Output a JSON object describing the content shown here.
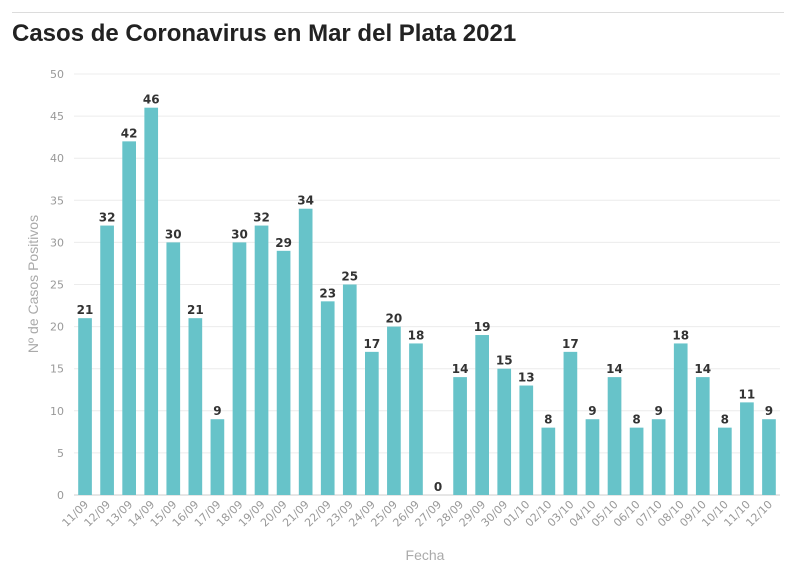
{
  "chart_data": {
    "type": "bar",
    "title": "Casos de Coronavirus en Mar del Plata 2021",
    "xlabel": "Fecha",
    "ylabel": "Nº de Casos Positivos",
    "ylim": [
      0,
      50
    ],
    "yticks": [
      0,
      5,
      10,
      15,
      20,
      25,
      30,
      35,
      40,
      45,
      50
    ],
    "grid": true,
    "bar_color": "#67c3c9",
    "categories": [
      "11/09",
      "12/09",
      "13/09",
      "14/09",
      "15/09",
      "16/09",
      "17/09",
      "18/09",
      "19/09",
      "20/09",
      "21/09",
      "22/09",
      "23/09",
      "24/09",
      "25/09",
      "26/09",
      "27/09",
      "28/09",
      "29/09",
      "30/09",
      "01/10",
      "02/10",
      "03/10",
      "04/10",
      "05/10",
      "06/10",
      "07/10",
      "08/10",
      "09/10",
      "10/10",
      "11/10",
      "12/10"
    ],
    "values": [
      21,
      32,
      42,
      46,
      30,
      21,
      9,
      30,
      32,
      29,
      34,
      23,
      25,
      17,
      20,
      18,
      0,
      14,
      19,
      15,
      13,
      8,
      17,
      9,
      14,
      8,
      9,
      18,
      14,
      8,
      11,
      9
    ]
  }
}
